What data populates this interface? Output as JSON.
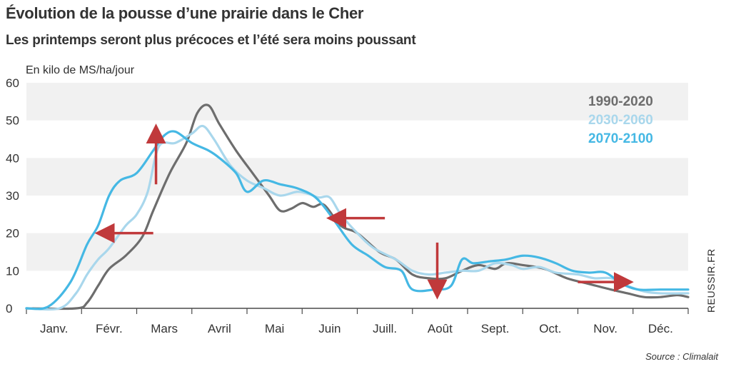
{
  "header": {
    "title": "Évolution de la pousse d’une prairie dans le Cher",
    "subtitle": "Les printemps seront plus précoces et l’été sera moins poussant",
    "unit_label": "En kilo de MS/ha/jour"
  },
  "footer": {
    "source": "Source : Climalait",
    "credit": "REUSSIR.FR"
  },
  "chart_data": {
    "type": "line",
    "title": "Évolution de la pousse d’une prairie dans le Cher",
    "subtitle": "Les printemps seront plus précoces et l’été sera moins poussant",
    "ylabel": "En kilo de MS/ha/jour",
    "xlabel": "",
    "x_unit": "month index (0 = start of Janv.)",
    "ylim": [
      0,
      60
    ],
    "yticks": [
      0,
      10,
      20,
      30,
      40,
      50,
      60
    ],
    "xlim": [
      0,
      12
    ],
    "categories": [
      "Janv.",
      "Févr.",
      "Mars",
      "Avril",
      "Mai",
      "Juin",
      "Juill.",
      "Août",
      "Sept.",
      "Oct.",
      "Nov.",
      "Déc."
    ],
    "grid": "alternating horizontal bands",
    "legend_position": "top-right",
    "series": [
      {
        "name": "1990-2020",
        "color": "#6d6d6d",
        "x": [
          0,
          0.9,
          1.1,
          1.3,
          1.5,
          1.8,
          2.1,
          2.3,
          2.6,
          2.9,
          3.1,
          3.3,
          3.5,
          3.8,
          4.1,
          4.4,
          4.6,
          4.8,
          5.0,
          5.2,
          5.4,
          5.7,
          6.0,
          6.4,
          6.7,
          7.0,
          7.3,
          7.6,
          7.9,
          8.2,
          8.5,
          8.7,
          9.0,
          9.4,
          9.8,
          10.2,
          10.6,
          10.9,
          11.2,
          11.5,
          11.8,
          12.0
        ],
        "y": [
          0,
          0,
          1.5,
          6,
          10.5,
          14,
          19,
          26,
          36,
          44,
          52,
          54,
          49,
          42,
          36,
          30,
          26,
          26.5,
          28,
          27,
          27.5,
          22,
          20,
          15,
          13,
          9,
          8,
          8,
          10,
          11.5,
          10.5,
          12,
          11.5,
          10.5,
          8,
          6.5,
          5,
          4,
          3,
          3,
          3.5,
          3
        ]
      },
      {
        "name": "2030-2060",
        "color": "#a9d7ec",
        "x": [
          0,
          0.6,
          0.9,
          1.1,
          1.3,
          1.5,
          1.8,
          2.0,
          2.2,
          2.4,
          2.7,
          3.0,
          3.2,
          3.4,
          3.7,
          4.0,
          4.3,
          4.6,
          4.9,
          5.1,
          5.3,
          5.5,
          5.7,
          6.0,
          6.3,
          6.7,
          7.0,
          7.3,
          7.6,
          7.9,
          8.2,
          8.5,
          8.8,
          9.0,
          9.3,
          9.6,
          10.0,
          10.3,
          10.6,
          10.9,
          11.2,
          11.5,
          12.0
        ],
        "y": [
          0,
          0,
          4,
          9,
          13,
          16,
          22,
          25,
          31,
          43,
          44,
          46.5,
          48.5,
          45,
          38,
          34,
          32,
          30,
          31,
          30.5,
          29.5,
          29.5,
          25,
          20,
          16,
          13,
          10,
          9,
          9.5,
          10,
          10,
          12,
          11.5,
          10.5,
          11,
          9.5,
          9,
          8,
          8,
          6,
          4.5,
          4,
          4
        ]
      },
      {
        "name": "2070-2100",
        "color": "#45b8e4",
        "x": [
          0,
          0.4,
          0.8,
          1.1,
          1.3,
          1.5,
          1.7,
          2.0,
          2.3,
          2.5,
          2.7,
          3.0,
          3.3,
          3.5,
          3.8,
          4.0,
          4.3,
          4.6,
          4.9,
          5.2,
          5.4,
          5.6,
          5.9,
          6.2,
          6.5,
          6.8,
          7.0,
          7.4,
          7.7,
          7.9,
          8.1,
          8.4,
          8.7,
          9.0,
          9.3,
          9.6,
          9.9,
          10.2,
          10.5,
          10.8,
          11.1,
          11.5,
          12.0
        ],
        "y": [
          0,
          0.5,
          7,
          17,
          22,
          30,
          34,
          36,
          42,
          46,
          47,
          44,
          42,
          40,
          36,
          31,
          34,
          33,
          32,
          30,
          27,
          23,
          17,
          14,
          11,
          10,
          5,
          5,
          6,
          13,
          12,
          12.5,
          13,
          14,
          13.5,
          12,
          10,
          9.5,
          9.5,
          6.5,
          5,
          5,
          5
        ]
      }
    ],
    "annotations": [
      {
        "type": "arrow",
        "color": "#c0393b",
        "from": [
          2.3,
          20
        ],
        "to": [
          1.35,
          20
        ]
      },
      {
        "type": "arrow",
        "color": "#c0393b",
        "from": [
          2.35,
          33
        ],
        "to": [
          2.35,
          47.5
        ]
      },
      {
        "type": "arrow",
        "color": "#c0393b",
        "from": [
          6.5,
          24
        ],
        "to": [
          5.55,
          24
        ]
      },
      {
        "type": "arrow",
        "color": "#c0393b",
        "from": [
          7.45,
          17.5
        ],
        "to": [
          7.45,
          4
        ]
      },
      {
        "type": "arrow",
        "color": "#c0393b",
        "from": [
          10.0,
          7
        ],
        "to": [
          10.9,
          7
        ]
      }
    ]
  }
}
